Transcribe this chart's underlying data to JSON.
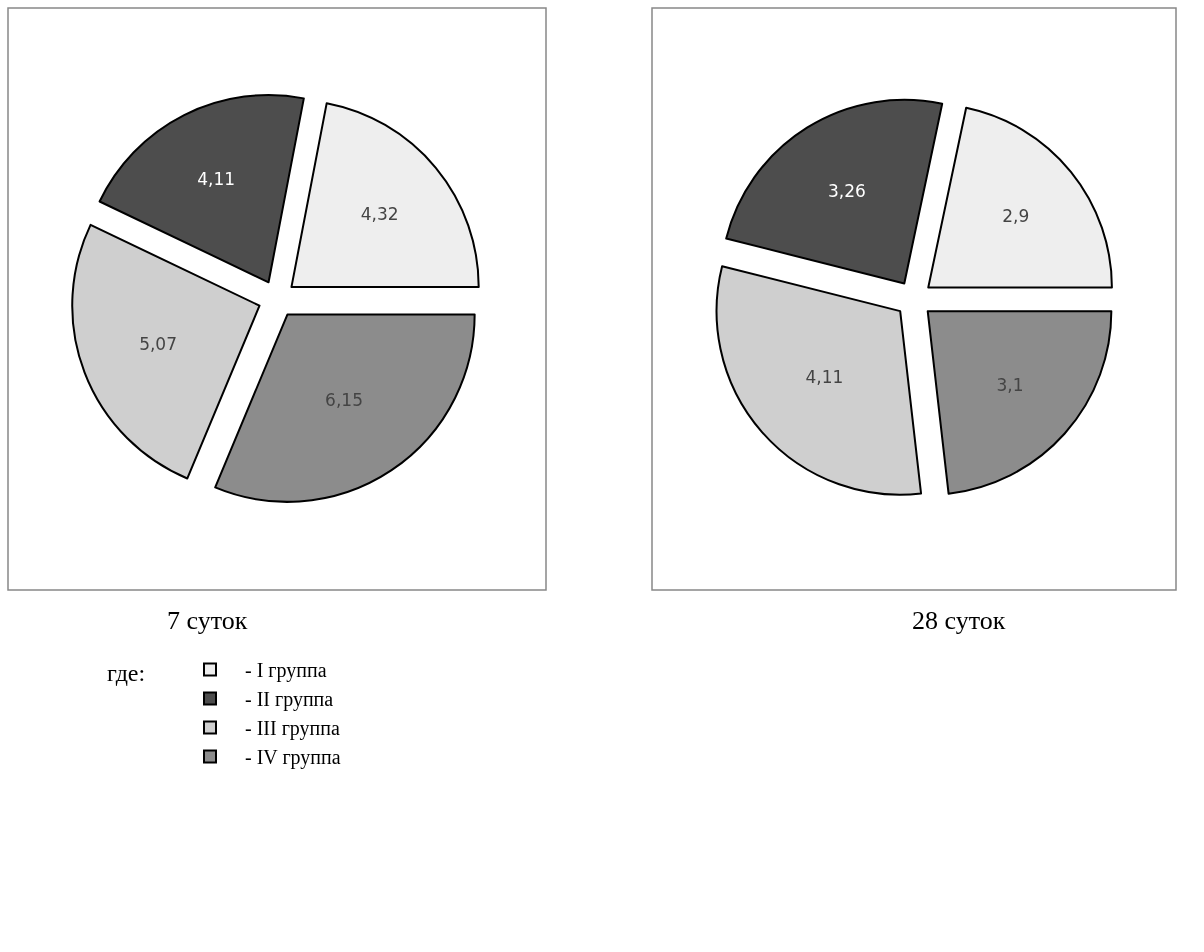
{
  "chart_data": [
    {
      "type": "pie",
      "title": "7 суток",
      "categories": [
        "- I группа",
        "- II группа",
        "- III группа",
        "- IV группа"
      ],
      "values": [
        4.32,
        4.11,
        5.07,
        6.15
      ],
      "value_labels": [
        "4,32",
        "4,11",
        "5,07",
        "6,15"
      ],
      "colors": [
        "#eeeeee",
        "#4d4d4d",
        "#cfcfcf",
        "#8c8c8c"
      ],
      "legend": "bottom left",
      "legend_title": "где:"
    },
    {
      "type": "pie",
      "title": "28 суток",
      "values": [
        2.9,
        3.26,
        4.11,
        3.1
      ],
      "value_labels": [
        "2,9",
        "3,26",
        "4,11",
        "3,1"
      ],
      "colors": [
        "#eeeeee",
        "#4d4d4d",
        "#cfcfcf",
        "#8c8c8c"
      ]
    }
  ]
}
